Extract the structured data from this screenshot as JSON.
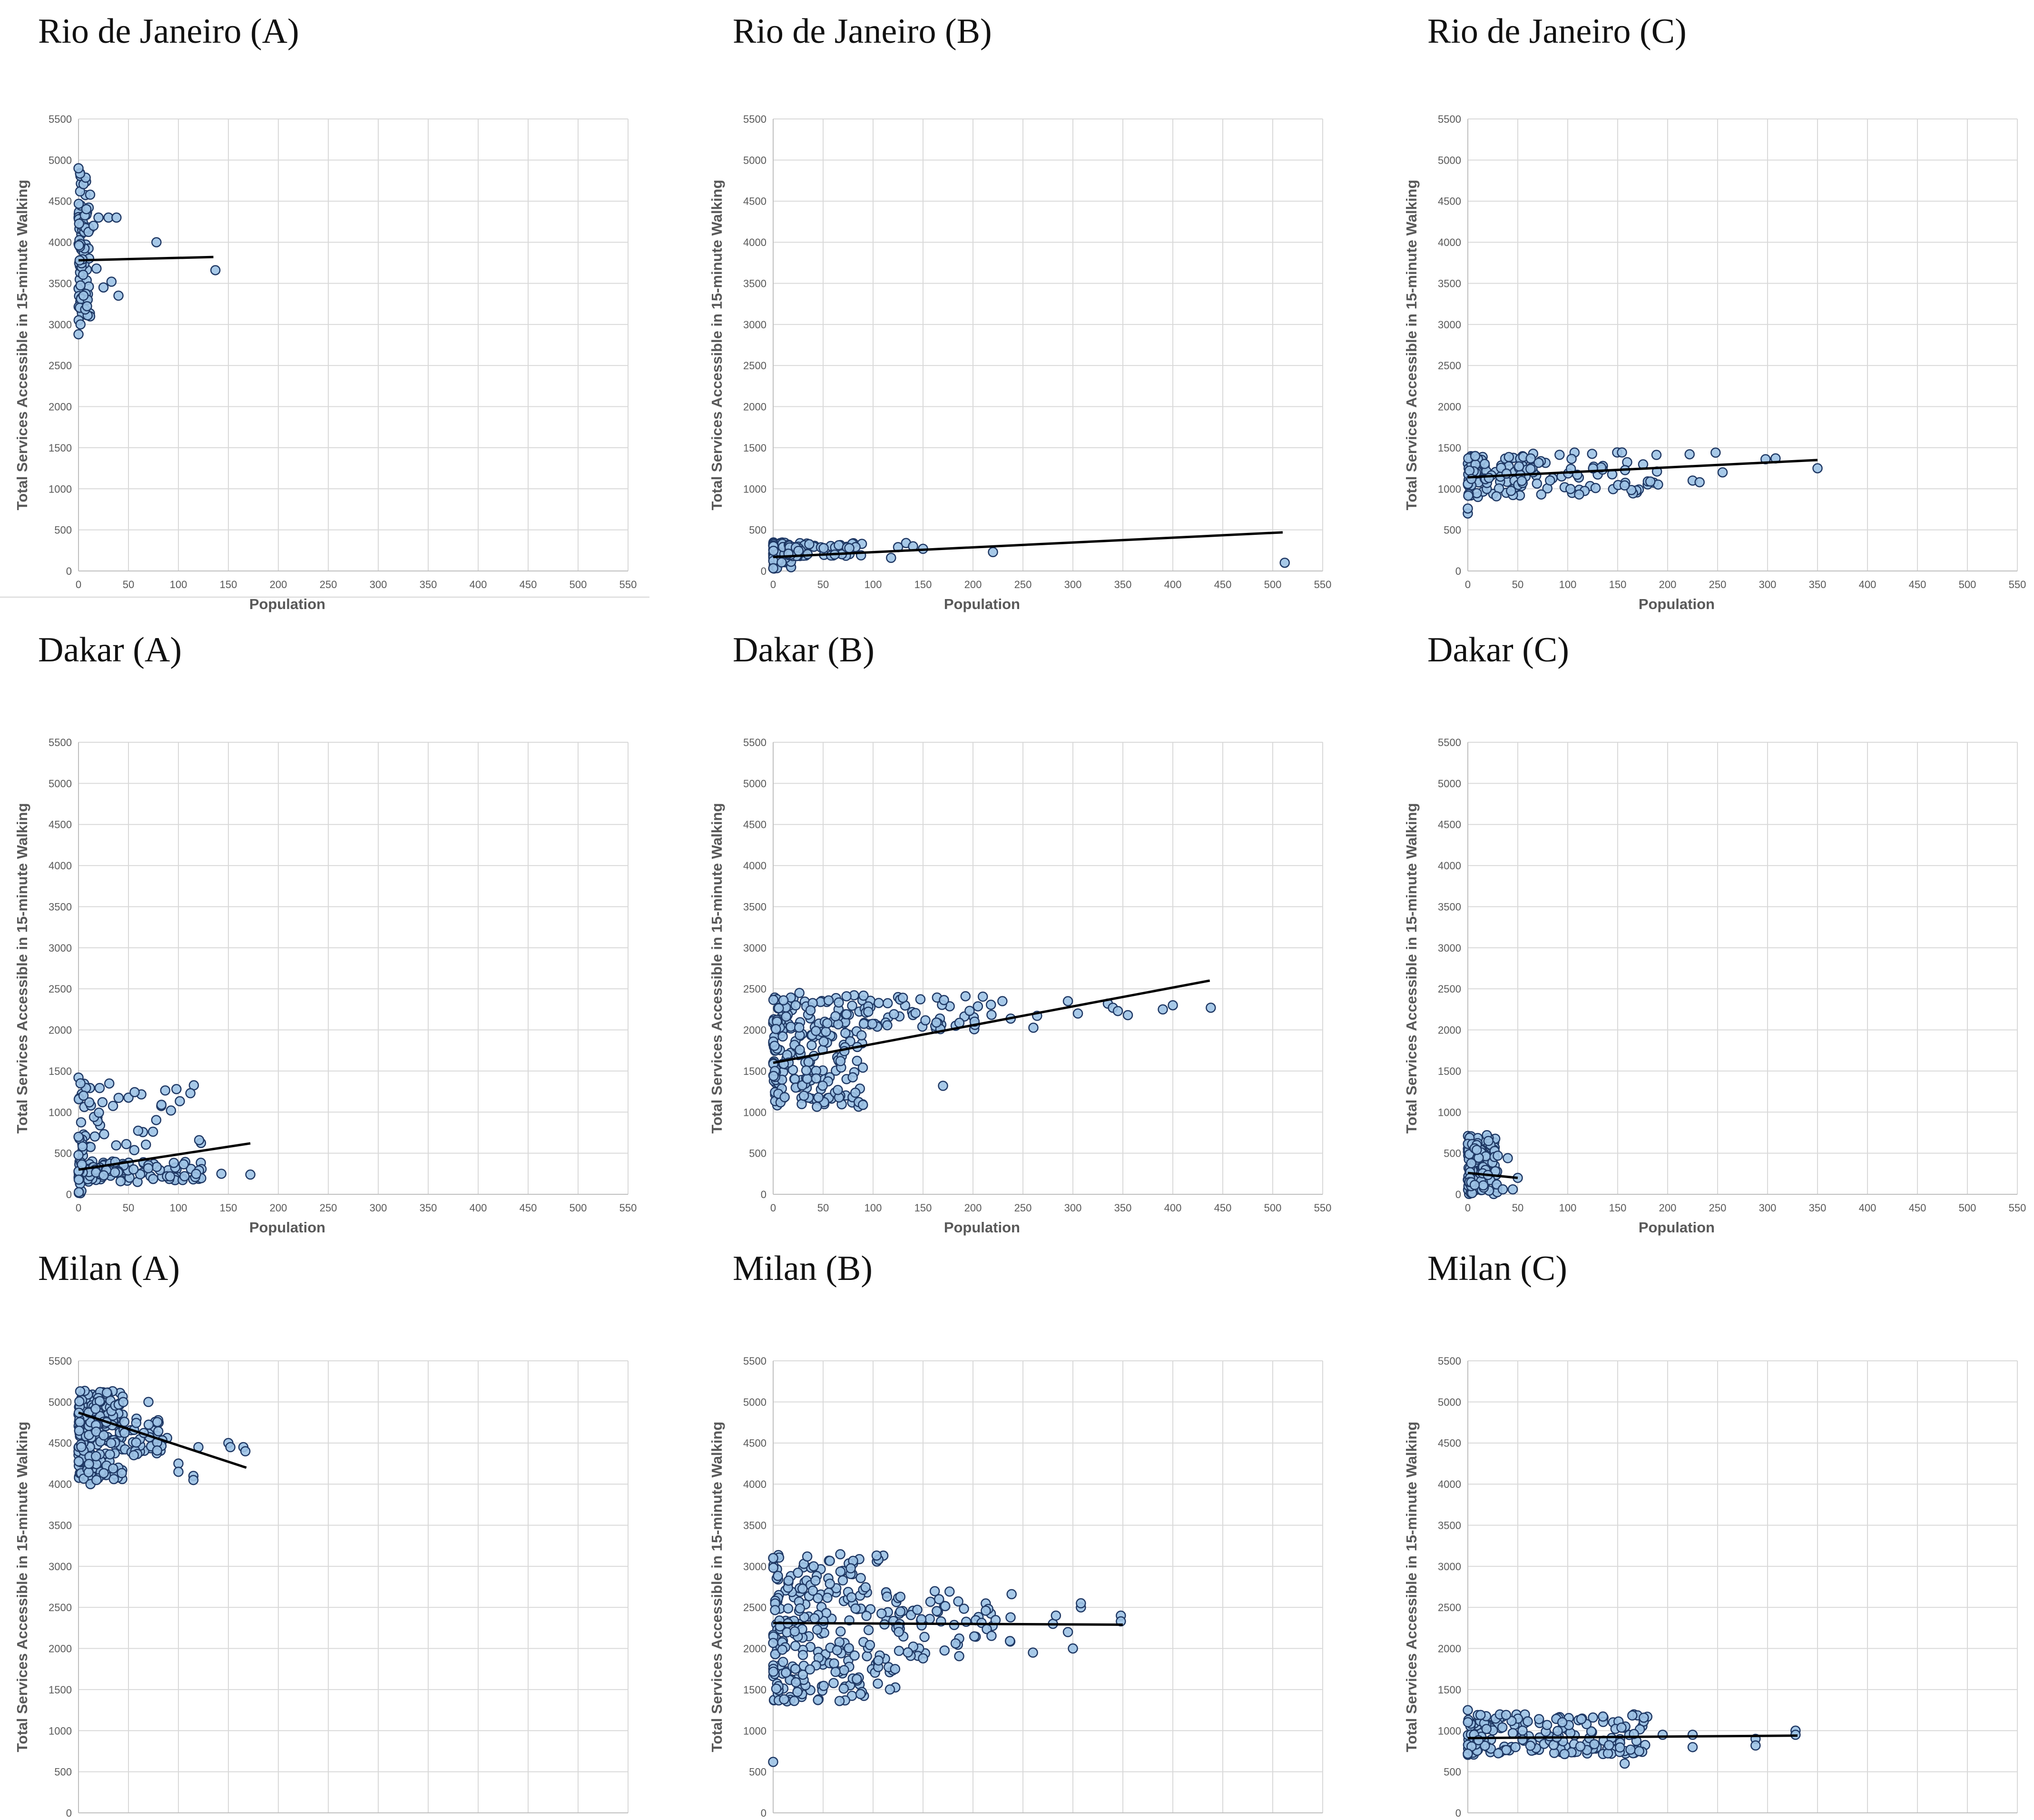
{
  "figure": {
    "charts": [
      {
        "title": "Rio de Janeiro (A)",
        "seed": 11,
        "trend": [
          0,
          3780,
          135,
          3820
        ],
        "clusters": [
          {
            "n": 90,
            "xmin": 0,
            "xmax": 12,
            "ymin": 3050,
            "ymax": 4850
          }
        ],
        "extra": [
          [
            0,
            2880
          ],
          [
            0,
            4900
          ],
          [
            2,
            3000
          ],
          [
            5,
            3350
          ],
          [
            15,
            4200
          ],
          [
            18,
            3680
          ],
          [
            20,
            4300
          ],
          [
            25,
            3450
          ],
          [
            30,
            4300
          ],
          [
            33,
            3520
          ],
          [
            38,
            4300
          ],
          [
            40,
            3350
          ],
          [
            78,
            4000
          ],
          [
            137,
            3660
          ]
        ]
      },
      {
        "title": "Rio de Janeiro (B)",
        "seed": 23,
        "trend": [
          0,
          170,
          510,
          470
        ],
        "clusters": [
          {
            "n": 80,
            "xmin": 0,
            "xmax": 18,
            "ymin": 20,
            "ymax": 360
          },
          {
            "n": 60,
            "xmin": 15,
            "xmax": 90,
            "ymin": 180,
            "ymax": 340
          }
        ],
        "extra": [
          [
            118,
            160
          ],
          [
            125,
            290
          ],
          [
            133,
            340
          ],
          [
            140,
            300
          ],
          [
            150,
            270
          ],
          [
            220,
            230
          ],
          [
            512,
            100
          ]
        ]
      },
      {
        "title": "Rio de Janeiro (C)",
        "seed": 37,
        "trend": [
          0,
          1140,
          350,
          1350
        ],
        "clusters": [
          {
            "n": 90,
            "xmin": 0,
            "xmax": 60,
            "ymin": 900,
            "ymax": 1400
          },
          {
            "n": 70,
            "xmin": 50,
            "xmax": 195,
            "ymin": 920,
            "ymax": 1450
          }
        ],
        "extra": [
          [
            0,
            700
          ],
          [
            0,
            760
          ],
          [
            222,
            1420
          ],
          [
            225,
            1100
          ],
          [
            232,
            1080
          ],
          [
            248,
            1440
          ],
          [
            255,
            1200
          ],
          [
            298,
            1360
          ],
          [
            308,
            1370
          ],
          [
            350,
            1250
          ]
        ]
      },
      {
        "title": "Dakar (A)",
        "seed": 41,
        "trend": [
          0,
          300,
          172,
          620
        ],
        "clusters": [
          {
            "n": 120,
            "xmin": 0,
            "xmax": 125,
            "ymin": 150,
            "ymax": 400
          },
          {
            "n": 45,
            "xmin": 0,
            "xmax": 125,
            "ymin": 500,
            "ymax": 1350
          },
          {
            "n": 25,
            "xmin": 0,
            "xmax": 5,
            "ymin": 0,
            "ymax": 700
          }
        ],
        "extra": [
          [
            0,
            1420
          ],
          [
            2,
            1350
          ],
          [
            5,
            1200
          ],
          [
            143,
            250
          ],
          [
            172,
            240
          ],
          [
            98,
            1280
          ],
          [
            112,
            1230
          ]
        ]
      },
      {
        "title": "Dakar (B)",
        "seed": 53,
        "trend": [
          0,
          1600,
          437,
          2600
        ],
        "clusters": [
          {
            "n": 230,
            "xmin": 0,
            "xmax": 90,
            "ymin": 1050,
            "ymax": 2450
          },
          {
            "n": 60,
            "xmin": 90,
            "xmax": 270,
            "ymin": 2000,
            "ymax": 2420
          }
        ],
        "extra": [
          [
            170,
            1320
          ],
          [
            295,
            2350
          ],
          [
            305,
            2200
          ],
          [
            335,
            2320
          ],
          [
            340,
            2270
          ],
          [
            345,
            2230
          ],
          [
            355,
            2180
          ],
          [
            390,
            2250
          ],
          [
            400,
            2300
          ],
          [
            438,
            2270
          ]
        ]
      },
      {
        "title": "Dakar (C)",
        "seed": 67,
        "trend": [
          0,
          260,
          50,
          200
        ],
        "clusters": [
          {
            "n": 130,
            "xmin": 0,
            "xmax": 30,
            "ymin": 0,
            "ymax": 720
          }
        ],
        "extra": [
          [
            35,
            60
          ],
          [
            40,
            440
          ],
          [
            45,
            60
          ],
          [
            50,
            200
          ],
          [
            30,
            470
          ]
        ]
      },
      {
        "title": "Milan (A)",
        "seed": 71,
        "trend": [
          0,
          4870,
          168,
          4200
        ],
        "clusters": [
          {
            "n": 240,
            "xmin": 0,
            "xmax": 45,
            "ymin": 4050,
            "ymax": 5150
          },
          {
            "n": 40,
            "xmin": 45,
            "xmax": 90,
            "ymin": 4350,
            "ymax": 4800
          }
        ],
        "extra": [
          [
            100,
            4250
          ],
          [
            100,
            4150
          ],
          [
            115,
            4100
          ],
          [
            115,
            4050
          ],
          [
            120,
            4450
          ],
          [
            150,
            4500
          ],
          [
            152,
            4450
          ],
          [
            165,
            4450
          ],
          [
            167,
            4400
          ],
          [
            70,
            5000
          ],
          [
            12,
            4000
          ],
          [
            18,
            4050
          ]
        ]
      },
      {
        "title": "Milan (B)",
        "seed": 83,
        "trend": [
          0,
          2310,
          350,
          2290
        ],
        "clusters": [
          {
            "n": 250,
            "xmin": 0,
            "xmax": 125,
            "ymin": 1350,
            "ymax": 3150
          },
          {
            "n": 60,
            "xmin": 125,
            "xmax": 240,
            "ymin": 1900,
            "ymax": 2700
          }
        ],
        "extra": [
          [
            0,
            3100
          ],
          [
            260,
            1950
          ],
          [
            280,
            2300
          ],
          [
            283,
            2400
          ],
          [
            295,
            2200
          ],
          [
            300,
            2000
          ],
          [
            308,
            2500
          ],
          [
            308,
            2550
          ],
          [
            348,
            2400
          ],
          [
            348,
            2330
          ],
          [
            0,
            620
          ],
          [
            150,
            1880
          ]
        ]
      },
      {
        "title": "Milan (C)",
        "seed": 97,
        "trend": [
          0,
          910,
          330,
          940
        ],
        "clusters": [
          {
            "n": 190,
            "xmin": 0,
            "xmax": 180,
            "ymin": 700,
            "ymax": 1200
          }
        ],
        "extra": [
          [
            0,
            1250
          ],
          [
            0,
            720
          ],
          [
            157,
            600
          ],
          [
            195,
            950
          ],
          [
            225,
            800
          ],
          [
            225,
            950
          ],
          [
            288,
            900
          ],
          [
            288,
            820
          ],
          [
            328,
            1000
          ],
          [
            328,
            950
          ]
        ]
      }
    ],
    "axis": {
      "xlabel": "Population",
      "ylabel": "Total Services Accessible in 15-minute Walking",
      "x_ticks": [
        "0",
        "50",
        "100",
        "150",
        "200",
        "250",
        "300",
        "350",
        "400",
        "450",
        "500",
        "550"
      ],
      "y_ticks": [
        "0",
        "500",
        "1000",
        "1500",
        "2000",
        "2500",
        "3000",
        "3500",
        "4000",
        "4500",
        "5000",
        "5500"
      ]
    }
  },
  "chart_data": [
    {
      "type": "scatter",
      "title": "Rio de Janeiro (A)",
      "xlabel": "Population",
      "ylabel": "Total Services Accessible in 15-minute Walking",
      "xlim": [
        0,
        550
      ],
      "ylim": [
        0,
        5500
      ],
      "trendline": {
        "x": [
          0,
          135
        ],
        "y": [
          3780,
          3820
        ]
      }
    },
    {
      "type": "scatter",
      "title": "Rio de Janeiro (B)",
      "xlabel": "Population",
      "ylabel": "Total Services Accessible in 15-minute Walking",
      "xlim": [
        0,
        550
      ],
      "ylim": [
        0,
        5500
      ],
      "trendline": {
        "x": [
          0,
          510
        ],
        "y": [
          170,
          470
        ]
      }
    },
    {
      "type": "scatter",
      "title": "Rio de Janeiro (C)",
      "xlabel": "Population",
      "ylabel": "Total Services Accessible in 15-minute Walking",
      "xlim": [
        0,
        550
      ],
      "ylim": [
        0,
        5500
      ],
      "trendline": {
        "x": [
          0,
          350
        ],
        "y": [
          1140,
          1350
        ]
      }
    },
    {
      "type": "scatter",
      "title": "Dakar (A)",
      "xlabel": "Population",
      "ylabel": "Total Services Accessible in 15-minute Walking",
      "xlim": [
        0,
        550
      ],
      "ylim": [
        0,
        5500
      ],
      "trendline": {
        "x": [
          0,
          172
        ],
        "y": [
          300,
          620
        ]
      }
    },
    {
      "type": "scatter",
      "title": "Dakar (B)",
      "xlabel": "Population",
      "ylabel": "Total Services Accessible in 15-minute Walking",
      "xlim": [
        0,
        550
      ],
      "ylim": [
        0,
        5500
      ],
      "trendline": {
        "x": [
          0,
          437
        ],
        "y": [
          1600,
          2600
        ]
      }
    },
    {
      "type": "scatter",
      "title": "Dakar (C)",
      "xlabel": "Population",
      "ylabel": "Total Services Accessible in 15-minute Walking",
      "xlim": [
        0,
        550
      ],
      "ylim": [
        0,
        5500
      ],
      "trendline": {
        "x": [
          0,
          50
        ],
        "y": [
          260,
          200
        ]
      }
    },
    {
      "type": "scatter",
      "title": "Milan (A)",
      "xlabel": "Population",
      "ylabel": "Total Services Accessible in 15-minute Walking",
      "xlim": [
        0,
        550
      ],
      "ylim": [
        0,
        5500
      ],
      "trendline": {
        "x": [
          0,
          168
        ],
        "y": [
          4870,
          4200
        ]
      }
    },
    {
      "type": "scatter",
      "title": "Milan (B)",
      "xlabel": "Population",
      "ylabel": "Total Services Accessible in 15-minute Walking",
      "xlim": [
        0,
        550
      ],
      "ylim": [
        0,
        5500
      ],
      "trendline": {
        "x": [
          0,
          350
        ],
        "y": [
          2310,
          2290
        ]
      }
    },
    {
      "type": "scatter",
      "title": "Milan (C)",
      "xlabel": "Population",
      "ylabel": "Total Services Accessible in 15-minute Walking",
      "xlim": [
        0,
        550
      ],
      "ylim": [
        0,
        5500
      ],
      "trendline": {
        "x": [
          0,
          330
        ],
        "y": [
          910,
          940
        ]
      }
    }
  ]
}
